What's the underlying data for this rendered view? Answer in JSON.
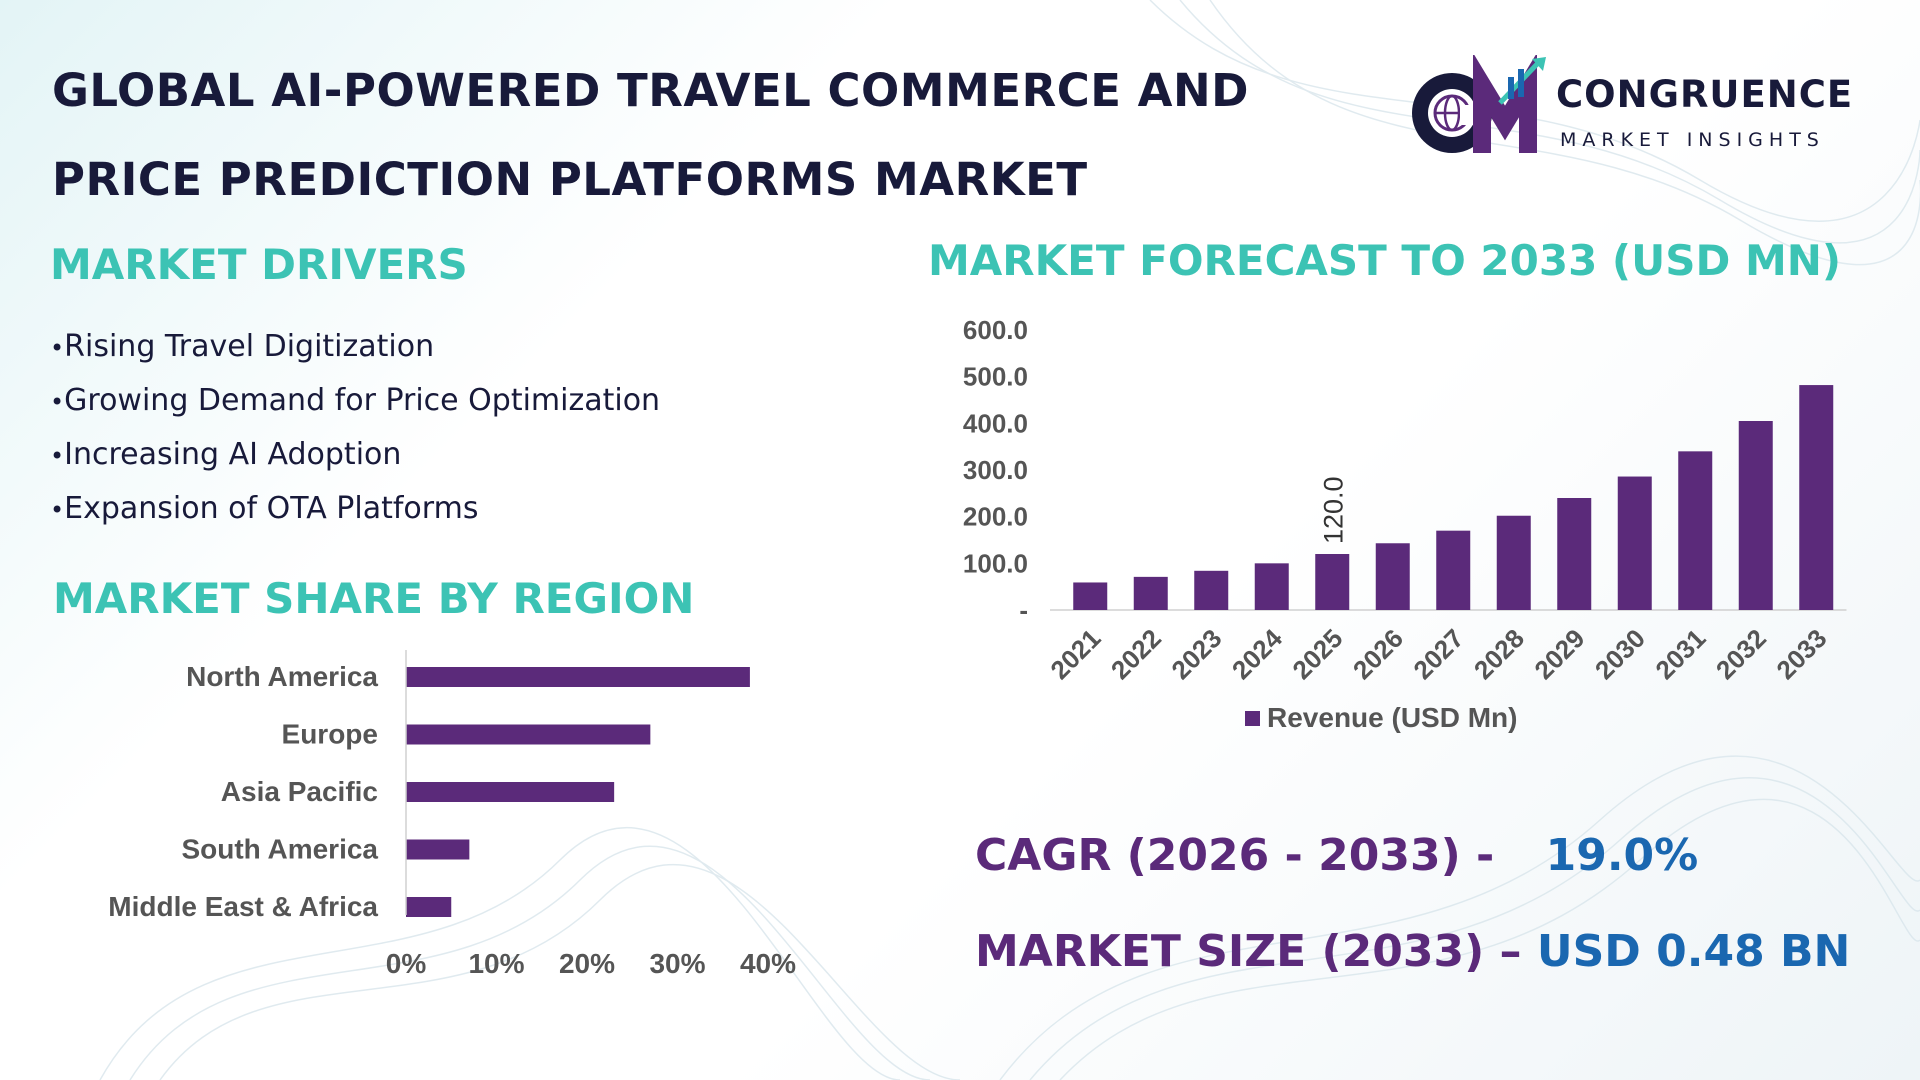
{
  "title": {
    "line1": "GLOBAL AI-POWERED TRAVEL COMMERCE AND",
    "line2": "PRICE PREDICTION PLATFORMS MARKET"
  },
  "logo": {
    "name": "CONGRUENCE",
    "subtitle": "MARKET INSIGHTS",
    "icon": "cm-globe-logo-icon"
  },
  "drivers": {
    "heading": "MARKET DRIVERS",
    "items": [
      "Rising Travel Digitization",
      "Growing Demand for Price Optimization",
      "Increasing AI Adoption",
      "Expansion of OTA Platforms"
    ]
  },
  "region": {
    "heading": "MARKET SHARE BY REGION"
  },
  "forecast": {
    "heading": "MARKET FORECAST TO 2033 (USD MN)"
  },
  "kpis": {
    "cagr_label": "CAGR (2026 - 2033) -",
    "cagr_value": "19.0%",
    "size_label": "MARKET SIZE (2033) –",
    "size_value": "USD 0.48 BN"
  },
  "colors": {
    "bar": "#5b2a7a",
    "heading_teal": "#3cc3b4",
    "title_navy": "#181a3a",
    "kpi_blue": "#1a67b0"
  },
  "chart_data": [
    {
      "type": "bar",
      "orientation": "vertical",
      "title": "MARKET FORECAST TO 2033 (USD MN)",
      "categories": [
        "2021",
        "2022",
        "2023",
        "2024",
        "2025",
        "2026",
        "2027",
        "2028",
        "2029",
        "2030",
        "2031",
        "2032",
        "2033"
      ],
      "series": [
        {
          "name": "Revenue (USD Mn)",
          "values": [
            59,
            71,
            84,
            100,
            120,
            143,
            170,
            202,
            240,
            286,
            340,
            405,
            482
          ]
        }
      ],
      "data_labels": [
        {
          "category": "2025",
          "text": "120.0"
        }
      ],
      "y_ticks": [
        "-",
        "100.0",
        "200.0",
        "300.0",
        "400.0",
        "500.0",
        "600.0"
      ],
      "ylim": [
        0,
        600
      ],
      "legend_position": "bottom",
      "grid": false
    },
    {
      "type": "bar",
      "orientation": "horizontal",
      "title": "MARKET SHARE BY REGION",
      "categories": [
        "North America",
        "Europe",
        "Asia Pacific",
        "South America",
        "Middle East & Africa"
      ],
      "values": [
        38,
        27,
        23,
        7,
        5
      ],
      "x_ticks": [
        "0%",
        "10%",
        "20%",
        "30%",
        "40%"
      ],
      "xlim": [
        0,
        40
      ],
      "grid": false
    }
  ]
}
